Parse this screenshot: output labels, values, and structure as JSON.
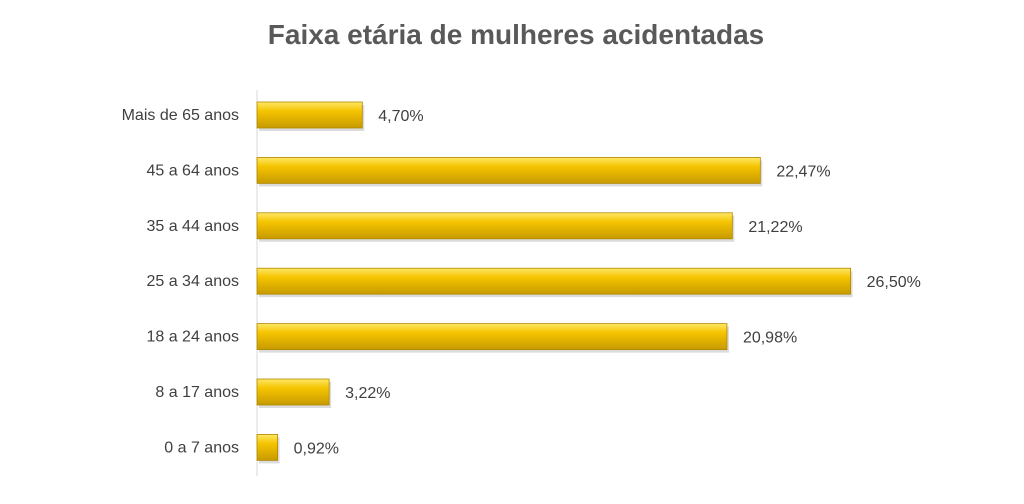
{
  "chart_data": {
    "type": "bar",
    "orientation": "horizontal",
    "title": "Faixa etária de mulheres acidentadas",
    "categories": [
      "Mais de 65 anos",
      "45 a 64 anos",
      "35 a 44 anos",
      "25 a 34 anos",
      "18 a 24 anos",
      "8 a 17 anos",
      "0 a 7 anos"
    ],
    "values": [
      4.7,
      22.47,
      21.22,
      26.5,
      20.98,
      3.22,
      0.92
    ],
    "value_labels": [
      "4,70%",
      "22,47%",
      "21,22%",
      "26,50%",
      "20,98%",
      "3,22%",
      "0,92%"
    ],
    "xlim": [
      0,
      30
    ],
    "grid": false,
    "legend": "none",
    "bar_color": "#F5C400",
    "bar_highlight": "#FFE866",
    "bar_shadow": "#C79A00"
  }
}
